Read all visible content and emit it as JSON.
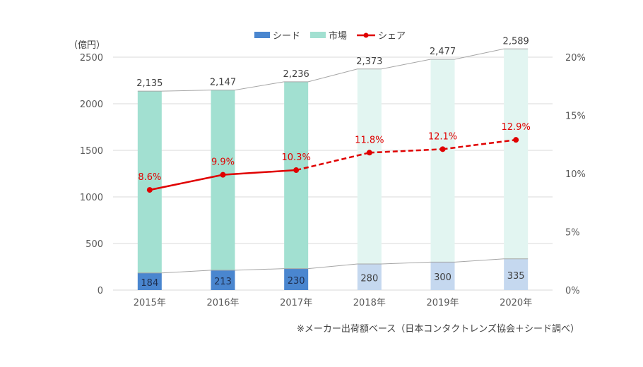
{
  "unit_label": "（億円）",
  "footnote": "※メーカー出荷額ベース（日本コンタクトレンズ協会＋シード調べ）",
  "legend": {
    "seed": "シード",
    "market": "市場",
    "share": "シェア"
  },
  "colors": {
    "seed_actual": "#4a86cf",
    "seed_forecast": "#c5d8ef",
    "market_actual": "#a2e0d1",
    "market_forecast": "#e2f5f1",
    "share": "#e00000",
    "connector": "#a6a6a6"
  },
  "chart_data": {
    "type": "bar",
    "categories": [
      "2015年",
      "2016年",
      "2017年",
      "2018年",
      "2019年",
      "2020年"
    ],
    "series": [
      {
        "name": "シード",
        "values": [
          184,
          213,
          230,
          280,
          300,
          335
        ],
        "labels": [
          "184",
          "213",
          "230",
          "280",
          "300",
          "335"
        ]
      },
      {
        "name": "市場",
        "values": [
          2135,
          2147,
          2236,
          2373,
          2477,
          2589
        ],
        "labels": [
          "2,135",
          "2,147",
          "2,236",
          "2,373",
          "2,477",
          "2,589"
        ]
      },
      {
        "name": "シェア",
        "type": "line",
        "axis": "right",
        "values": [
          8.6,
          9.9,
          10.3,
          11.8,
          12.1,
          12.9
        ],
        "labels": [
          "8.6%",
          "9.9%",
          "10.3%",
          "11.8%",
          "12.1%",
          "12.9%"
        ]
      }
    ],
    "forecast_from_index": 3,
    "ylim": [
      0,
      2500
    ],
    "yticks": [
      "0",
      "500",
      "1000",
      "1500",
      "2000",
      "2500"
    ],
    "y2lim": [
      0,
      20
    ],
    "y2ticks": [
      "0%",
      "5%",
      "10%",
      "15%",
      "20%"
    ],
    "legend_position": "top-center",
    "grid": true
  }
}
